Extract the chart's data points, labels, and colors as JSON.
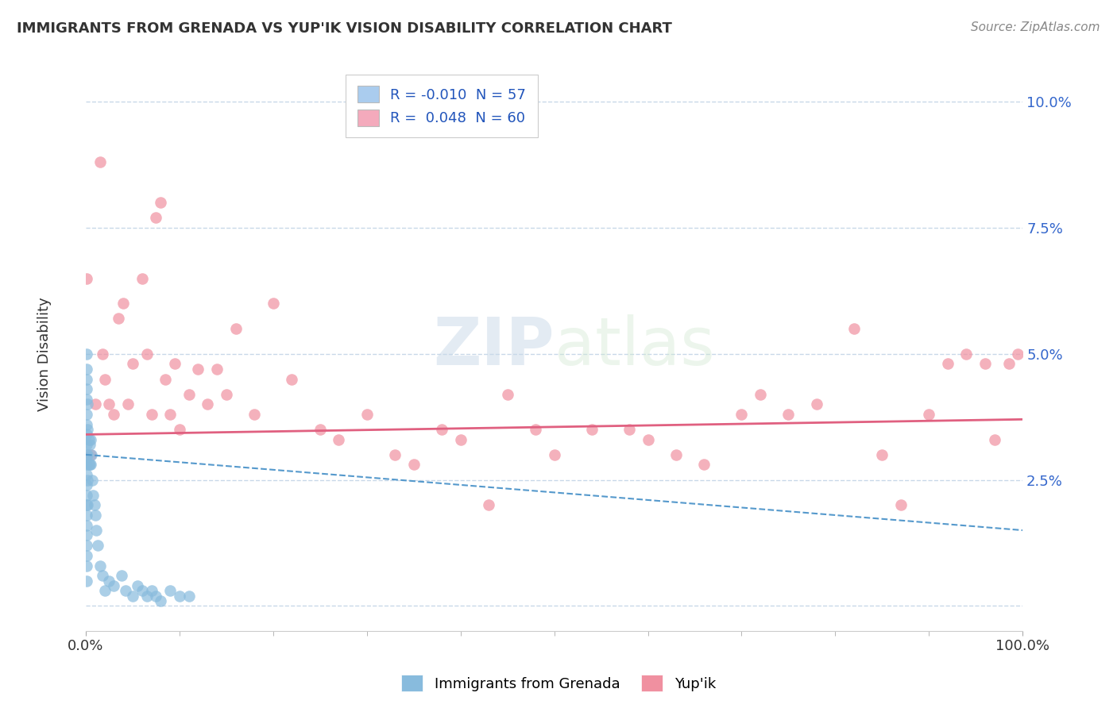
{
  "title": "IMMIGRANTS FROM GRENADA VS YUP'IK VISION DISABILITY CORRELATION CHART",
  "source": "Source: ZipAtlas.com",
  "ylabel": "Vision Disability",
  "xlim": [
    0,
    1.0
  ],
  "ylim": [
    -0.005,
    0.108
  ],
  "yticks": [
    0.0,
    0.025,
    0.05,
    0.075,
    0.1
  ],
  "ytick_labels": [
    "",
    "2.5%",
    "5.0%",
    "7.5%",
    "10.0%"
  ],
  "legend_entries": [
    {
      "label": "R = -0.010  N = 57",
      "color": "#aaccee"
    },
    {
      "label": "R =  0.048  N = 60",
      "color": "#f4aabc"
    }
  ],
  "series1_name": "Immigrants from Grenada",
  "series2_name": "Yup'ik",
  "series1_color": "#88bbdd",
  "series2_color": "#f090a0",
  "series1_line_color": "#5599cc",
  "series2_line_color": "#e06080",
  "background_color": "#ffffff",
  "grid_color": "#c8d8e8",
  "s1_x": [
    0.001,
    0.001,
    0.001,
    0.001,
    0.001,
    0.001,
    0.001,
    0.001,
    0.001,
    0.001,
    0.001,
    0.001,
    0.001,
    0.001,
    0.001,
    0.001,
    0.001,
    0.001,
    0.001,
    0.001,
    0.001,
    0.001,
    0.002,
    0.002,
    0.002,
    0.002,
    0.002,
    0.003,
    0.003,
    0.004,
    0.004,
    0.005,
    0.005,
    0.006,
    0.007,
    0.008,
    0.009,
    0.01,
    0.011,
    0.013,
    0.015,
    0.018,
    0.02,
    0.025,
    0.03,
    0.038,
    0.042,
    0.05,
    0.055,
    0.06,
    0.065,
    0.07,
    0.075,
    0.08,
    0.09,
    0.1,
    0.11
  ],
  "s1_y": [
    0.05,
    0.047,
    0.045,
    0.043,
    0.041,
    0.038,
    0.036,
    0.034,
    0.032,
    0.03,
    0.028,
    0.026,
    0.024,
    0.022,
    0.02,
    0.018,
    0.016,
    0.014,
    0.012,
    0.01,
    0.008,
    0.005,
    0.04,
    0.035,
    0.03,
    0.025,
    0.02,
    0.033,
    0.028,
    0.032,
    0.028,
    0.033,
    0.028,
    0.03,
    0.025,
    0.022,
    0.02,
    0.018,
    0.015,
    0.012,
    0.008,
    0.006,
    0.003,
    0.005,
    0.004,
    0.006,
    0.003,
    0.002,
    0.004,
    0.003,
    0.002,
    0.003,
    0.002,
    0.001,
    0.003,
    0.002,
    0.002
  ],
  "s2_x": [
    0.001,
    0.005,
    0.01,
    0.015,
    0.018,
    0.02,
    0.025,
    0.03,
    0.035,
    0.04,
    0.045,
    0.05,
    0.06,
    0.065,
    0.07,
    0.075,
    0.08,
    0.085,
    0.09,
    0.095,
    0.1,
    0.11,
    0.12,
    0.13,
    0.14,
    0.15,
    0.16,
    0.18,
    0.2,
    0.22,
    0.25,
    0.27,
    0.3,
    0.33,
    0.35,
    0.38,
    0.4,
    0.43,
    0.45,
    0.48,
    0.5,
    0.54,
    0.58,
    0.6,
    0.63,
    0.66,
    0.7,
    0.72,
    0.75,
    0.78,
    0.82,
    0.85,
    0.87,
    0.9,
    0.92,
    0.94,
    0.96,
    0.97,
    0.985,
    0.995
  ],
  "s2_y": [
    0.065,
    0.03,
    0.04,
    0.088,
    0.05,
    0.045,
    0.04,
    0.038,
    0.057,
    0.06,
    0.04,
    0.048,
    0.065,
    0.05,
    0.038,
    0.077,
    0.08,
    0.045,
    0.038,
    0.048,
    0.035,
    0.042,
    0.047,
    0.04,
    0.047,
    0.042,
    0.055,
    0.038,
    0.06,
    0.045,
    0.035,
    0.033,
    0.038,
    0.03,
    0.028,
    0.035,
    0.033,
    0.02,
    0.042,
    0.035,
    0.03,
    0.035,
    0.035,
    0.033,
    0.03,
    0.028,
    0.038,
    0.042,
    0.038,
    0.04,
    0.055,
    0.03,
    0.02,
    0.038,
    0.048,
    0.05,
    0.048,
    0.033,
    0.048,
    0.05
  ],
  "s2_line_x0": 0.0,
  "s2_line_y0": 0.034,
  "s2_line_x1": 1.0,
  "s2_line_y1": 0.037,
  "s1_line_x0": 0.0,
  "s1_line_y0": 0.03,
  "s1_line_x1": 1.0,
  "s1_line_y1": 0.015
}
